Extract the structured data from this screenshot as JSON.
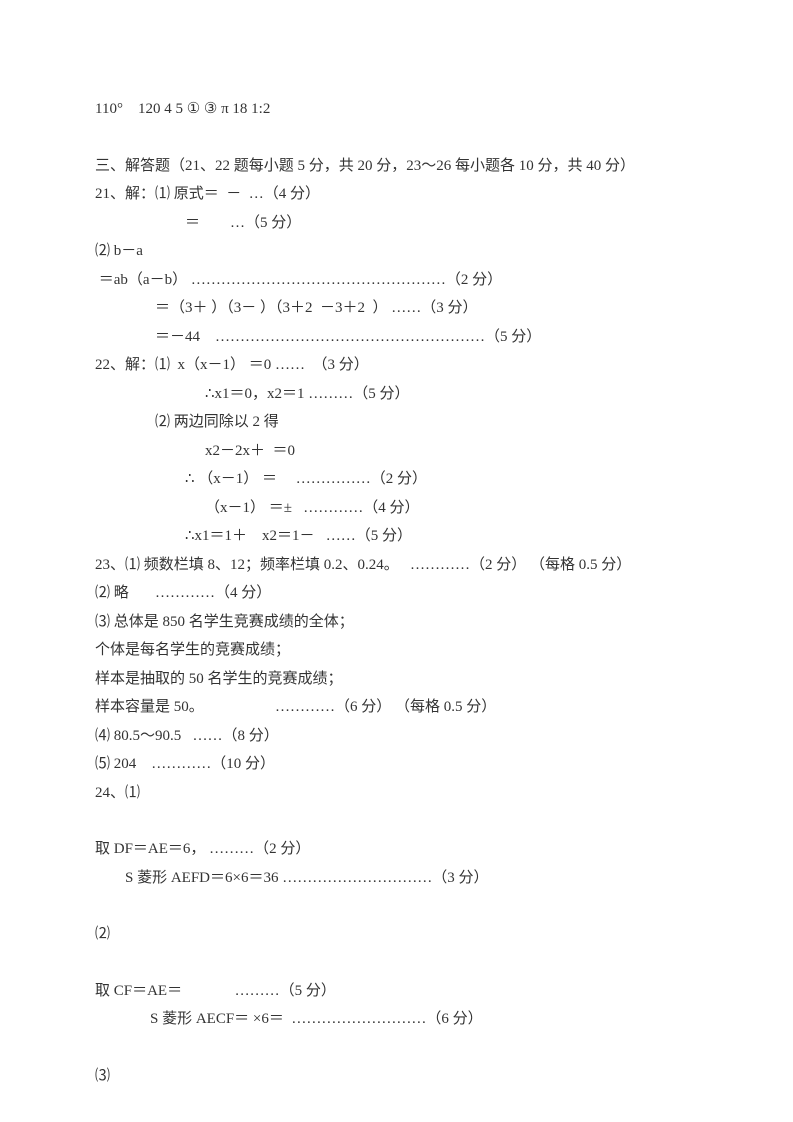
{
  "header_line": "110°    120 4 5 ① ③ π 18 1:2",
  "section_title": "三、解答题（21、22 题每小题 5 分，共 20 分，23～26 每小题各 10 分，共 40 分）",
  "q21_line1": "21、解：⑴ 原式＝  －  …（4 分）",
  "q21_line2": "＝        …（5 分）",
  "q21_line3": "⑵ b－a",
  "q21_line4": " ＝ab（a－b） ……………………………………………（2 分）",
  "q21_line5": "＝（3＋ ）（3－ ）（3＋2  －3＋2  ） ……（3 分）",
  "q21_line6": "＝－44    ………………………………………………（5 分）",
  "q22_line1": "22、解：⑴  x（x－1） ＝0 ……  （3 分）",
  "q22_line2": "∴x1＝0，x2＝1 ………（5 分）",
  "q22_line3": "⑵ 两边同除以 2 得",
  "q22_line4": "x2－2x＋  ＝0",
  "q22_line5": "∴ （x－1） ＝     ……………（2 分）",
  "q22_line6": "（x－1） ＝±   …………（4 分）",
  "q22_line7": "∴x1＝1＋    x2＝1－   ……（5 分）",
  "q23_line1": "23、⑴ 频数栏填 8、12；频率栏填 0.2、0.24。   …………（2 分） （每格 0.5 分）",
  "q23_line2": "⑵ 略       …………（4 分）",
  "q23_line3": "⑶ 总体是 850 名学生竞赛成绩的全体；",
  "q23_line4": "个体是每名学生的竞赛成绩；",
  "q23_line5": "样本是抽取的 50 名学生的竞赛成绩；",
  "q23_line6": "样本容量是 50。                   …………（6 分） （每格 0.5 分）",
  "q23_line7": "⑷ 80.5～90.5   ……（8 分）",
  "q23_line8": "⑸ 204    …………（10 分）",
  "q24_line1": "24、⑴",
  "q24_line2": "取 DF＝AE＝6， ………（2 分）",
  "q24_line3": "S 菱形 AEFD＝6×6＝36 …………………………（3 分）",
  "q24_line4": "⑵",
  "q24_line5": "取 CF＝AE＝              ………（5 分）",
  "q24_line6": "S 菱形 AECF＝ ×6＝  ………………………（6 分）",
  "q24_line7": "⑶"
}
